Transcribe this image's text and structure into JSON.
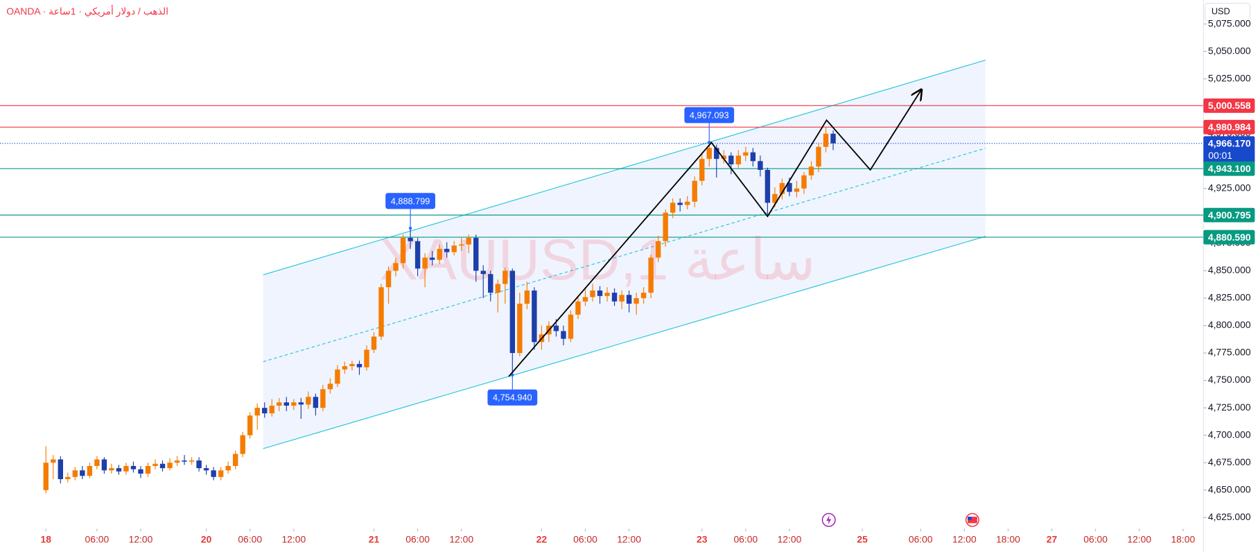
{
  "chart_data": {
    "type": "candlestick",
    "title": "OANDA · الذهب / دولار أمريكي · 1ساعة",
    "watermark": "XAUUSD,1 ساعة",
    "currency": "USD",
    "up_color": "#f57c00",
    "down_color": "#1c3faa",
    "xlim": [
      -6.3,
      158.8
    ],
    "ylim": [
      4618.4,
      5096.9
    ],
    "x": [
      0,
      1,
      2,
      3,
      4,
      5,
      6,
      7,
      8,
      9,
      10,
      11,
      12,
      13,
      14,
      15,
      16,
      17,
      18,
      19,
      20,
      21,
      22,
      23,
      24,
      25,
      26,
      27,
      28,
      29,
      30,
      31,
      32,
      33,
      34,
      35,
      36,
      37,
      38,
      39,
      40,
      41,
      42,
      43,
      44,
      45,
      46,
      47,
      48,
      49,
      50,
      51,
      52,
      53,
      54,
      55,
      56,
      57,
      58,
      59,
      60,
      61,
      62,
      63,
      64,
      65,
      66,
      67,
      68,
      69,
      70,
      71,
      72,
      73,
      74,
      75,
      76,
      77,
      78,
      79,
      80,
      81,
      82,
      83,
      84,
      85,
      86,
      87,
      88,
      89,
      90,
      91,
      92,
      93,
      94,
      95,
      96,
      97,
      98,
      99,
      100,
      101,
      102,
      103,
      104,
      105,
      106,
      107,
      108
    ],
    "open": [
      4650,
      4675,
      4678,
      4660,
      4662,
      4668,
      4663,
      4672,
      4678,
      4668,
      4670,
      4667,
      4672,
      4669,
      4665,
      4672,
      4674,
      4670,
      4675,
      4677,
      4676,
      4677,
      4670,
      4668,
      4662,
      4668,
      4672,
      4683,
      4700,
      4718,
      4725,
      4720,
      4727,
      4730,
      4727,
      4730,
      4728,
      4735,
      4725,
      4742,
      4747,
      4760,
      4763,
      4765,
      4762,
      4778,
      4790,
      4835,
      4850,
      4857,
      4880,
      4877,
      4852,
      4862,
      4860,
      4870,
      4867,
      4873,
      4874,
      4880,
      4850,
      4847,
      4830,
      4838,
      4850,
      4775,
      4820,
      4832,
      4785,
      4792,
      4800,
      4795,
      4788,
      4810,
      4822,
      4826,
      4832,
      4827,
      4830,
      4822,
      4828,
      4820,
      4825,
      4830,
      4862,
      4877,
      4903,
      4912,
      4910,
      4913,
      4932,
      4952,
      4962,
      4952,
      4955,
      4947,
      4955,
      4958,
      4950,
      4942,
      4912,
      4920,
      4930,
      4922,
      4925,
      4937,
      4945,
      4963,
      4975
    ],
    "high": [
      4690,
      4682,
      4681,
      4666,
      4671,
      4672,
      4675,
      4681,
      4680,
      4674,
      4673,
      4675,
      4676,
      4672,
      4675,
      4678,
      4677,
      4679,
      4681,
      4682,
      4680,
      4680,
      4673,
      4671,
      4671,
      4676,
      4686,
      4703,
      4721,
      4729,
      4730,
      4733,
      4734,
      4735,
      4733,
      4734,
      4740,
      4738,
      4746,
      4752,
      4764,
      4767,
      4768,
      4768,
      4782,
      4794,
      4838,
      4854,
      4862,
      4883,
      4888.799,
      4880,
      4866,
      4868,
      4874,
      4876,
      4877,
      4880,
      4883,
      4883,
      4855,
      4850,
      4842,
      4853,
      4852,
      4830,
      4840,
      4835,
      4800,
      4804,
      4806,
      4800,
      4814,
      4826,
      4835,
      4838,
      4836,
      4835,
      4834,
      4832,
      4832,
      4830,
      4835,
      4865,
      4882,
      4906,
      4916,
      4916,
      4918,
      4936,
      4958,
      4967.093,
      4965,
      4960,
      4958,
      4960,
      4963,
      4962,
      4955,
      4944,
      4926,
      4934,
      4935,
      4932,
      4940,
      4950,
      4967,
      4980.984,
      4978
    ],
    "low": [
      4647,
      4660,
      4656,
      4657,
      4659,
      4660,
      4661,
      4669,
      4665,
      4665,
      4664,
      4664,
      4666,
      4661,
      4662,
      4669,
      4667,
      4668,
      4672,
      4673,
      4673,
      4667,
      4664,
      4659,
      4659,
      4665,
      4669,
      4680,
      4697,
      4705,
      4716,
      4717,
      4722,
      4722,
      4723,
      4715,
      4724,
      4718,
      4722,
      4738,
      4744,
      4756,
      4759,
      4755,
      4759,
      4775,
      4787,
      4820,
      4845,
      4852,
      4870,
      4845,
      4835,
      4855,
      4856,
      4862,
      4864,
      4868,
      4866,
      4840,
      4825,
      4822,
      4812,
      4820,
      4754.94,
      4772,
      4815,
      4778,
      4778,
      4785,
      4790,
      4782,
      4785,
      4806,
      4818,
      4822,
      4820,
      4822,
      4818,
      4815,
      4812,
      4810,
      4820,
      4825,
      4858,
      4872,
      4898,
      4904,
      4906,
      4908,
      4928,
      4945,
      4935,
      4948,
      4938,
      4944,
      4950,
      4945,
      4936,
      4900.795,
      4908,
      4915,
      4918,
      4917,
      4920,
      4933,
      4940,
      4958,
      4960
    ],
    "close": [
      4675,
      4678,
      4660,
      4662,
      4668,
      4663,
      4672,
      4678,
      4668,
      4670,
      4667,
      4672,
      4669,
      4665,
      4672,
      4674,
      4670,
      4675,
      4677,
      4676,
      4677,
      4670,
      4668,
      4662,
      4668,
      4672,
      4683,
      4700,
      4718,
      4725,
      4720,
      4727,
      4730,
      4727,
      4730,
      4728,
      4735,
      4725,
      4742,
      4747,
      4760,
      4763,
      4765,
      4762,
      4778,
      4790,
      4835,
      4850,
      4857,
      4880,
      4877,
      4852,
      4862,
      4860,
      4870,
      4867,
      4873,
      4874,
      4880,
      4850,
      4847,
      4830,
      4838,
      4850,
      4775,
      4820,
      4832,
      4785,
      4792,
      4800,
      4795,
      4788,
      4810,
      4822,
      4826,
      4832,
      4827,
      4830,
      4822,
      4828,
      4820,
      4825,
      4830,
      4862,
      4877,
      4903,
      4912,
      4910,
      4913,
      4932,
      4952,
      4962,
      4952,
      4955,
      4947,
      4955,
      4958,
      4950,
      4942,
      4912,
      4920,
      4930,
      4922,
      4925,
      4937,
      4945,
      4963,
      4975,
      4966.17
    ],
    "yticks": [
      {
        "value": 4625,
        "label": "4,625.000"
      },
      {
        "value": 4650,
        "label": "4,650.000"
      },
      {
        "value": 4675,
        "label": "4,675.000"
      },
      {
        "value": 4700,
        "label": "4,700.000"
      },
      {
        "value": 4725,
        "label": "4,725.000"
      },
      {
        "value": 4750,
        "label": "4,750.000"
      },
      {
        "value": 4775,
        "label": "4,775.000"
      },
      {
        "value": 4800,
        "label": "4,800.000"
      },
      {
        "value": 4825,
        "label": "4,825.000"
      },
      {
        "value": 4850,
        "label": "4,850.000"
      },
      {
        "value": 4875,
        "label": "4,875.000"
      },
      {
        "value": 4900,
        "label": "4,900.000"
      },
      {
        "value": 4925,
        "label": "4,925.000"
      },
      {
        "value": 4950,
        "label": "4,950.000"
      },
      {
        "value": 4975,
        "label": "4,975.000"
      },
      {
        "value": 5000,
        "label": "5,000.000"
      },
      {
        "value": 5025,
        "label": "5,025.000"
      },
      {
        "value": 5050,
        "label": "5,050.000"
      },
      {
        "value": 5075,
        "label": "5,075.000"
      }
    ],
    "xticks": [
      {
        "value": 0,
        "label": "18"
      },
      {
        "value": 7,
        "label": "06:00"
      },
      {
        "value": 13,
        "label": "12:00"
      },
      {
        "value": 22,
        "label": "20"
      },
      {
        "value": 28,
        "label": "06:00"
      },
      {
        "value": 34,
        "label": "12:00"
      },
      {
        "value": 45,
        "label": "21"
      },
      {
        "value": 51,
        "label": "06:00"
      },
      {
        "value": 57,
        "label": "12:00"
      },
      {
        "value": 68,
        "label": "22"
      },
      {
        "value": 74,
        "label": "06:00"
      },
      {
        "value": 80,
        "label": "12:00"
      },
      {
        "value": 90,
        "label": "23"
      },
      {
        "value": 96,
        "label": "06:00"
      },
      {
        "value": 102,
        "label": "12:00"
      },
      {
        "value": 112,
        "label": "25"
      },
      {
        "value": 120,
        "label": "06:00"
      },
      {
        "value": 126,
        "label": "12:00"
      },
      {
        "value": 132,
        "label": "18:00"
      },
      {
        "value": 138,
        "label": "27"
      },
      {
        "value": 144,
        "label": "06:00"
      },
      {
        "value": 150,
        "label": "12:00"
      },
      {
        "value": 156,
        "label": "18:00"
      }
    ],
    "levels": [
      {
        "value": 5000.558,
        "label": "5,000.558",
        "color": "#f23645",
        "style": "solid"
      },
      {
        "value": 4980.984,
        "label": "4,980.984",
        "color": "#f23645",
        "style": "solid"
      },
      {
        "value": 4966.17,
        "label": "4,966.170",
        "color": "#1848cc",
        "style": "dotted",
        "countdown": "00:01"
      },
      {
        "value": 4943.1,
        "label": "4,943.100",
        "color": "#089981",
        "style": "solid"
      },
      {
        "value": 4900.795,
        "label": "4,900.795",
        "color": "#089981",
        "style": "solid"
      },
      {
        "value": 4880.59,
        "label": "4,880.590",
        "color": "#089981",
        "style": "solid"
      }
    ],
    "callouts": [
      {
        "x": 50,
        "value": 4888.799,
        "label": "4,888.799",
        "side": "above"
      },
      {
        "x": 91,
        "value": 4967.093,
        "label": "4,967.093",
        "side": "above"
      },
      {
        "x": 64,
        "value": 4754.94,
        "label": "4,754.940",
        "side": "below"
      }
    ],
    "channel": {
      "x": [
        29.8,
        128.9
      ],
      "upper": [
        4846.3,
        5042.1
      ],
      "lower": [
        4687.8,
        4881.4
      ],
      "color": "#26c6da"
    },
    "path": {
      "x": [
        63.5,
        91.3,
        99,
        107.1,
        113.1,
        120.1
      ],
      "y": [
        4753.6,
        4966.9,
        4899.6,
        4987.3,
        4942,
        5015.1
      ],
      "color": "#000000"
    }
  }
}
